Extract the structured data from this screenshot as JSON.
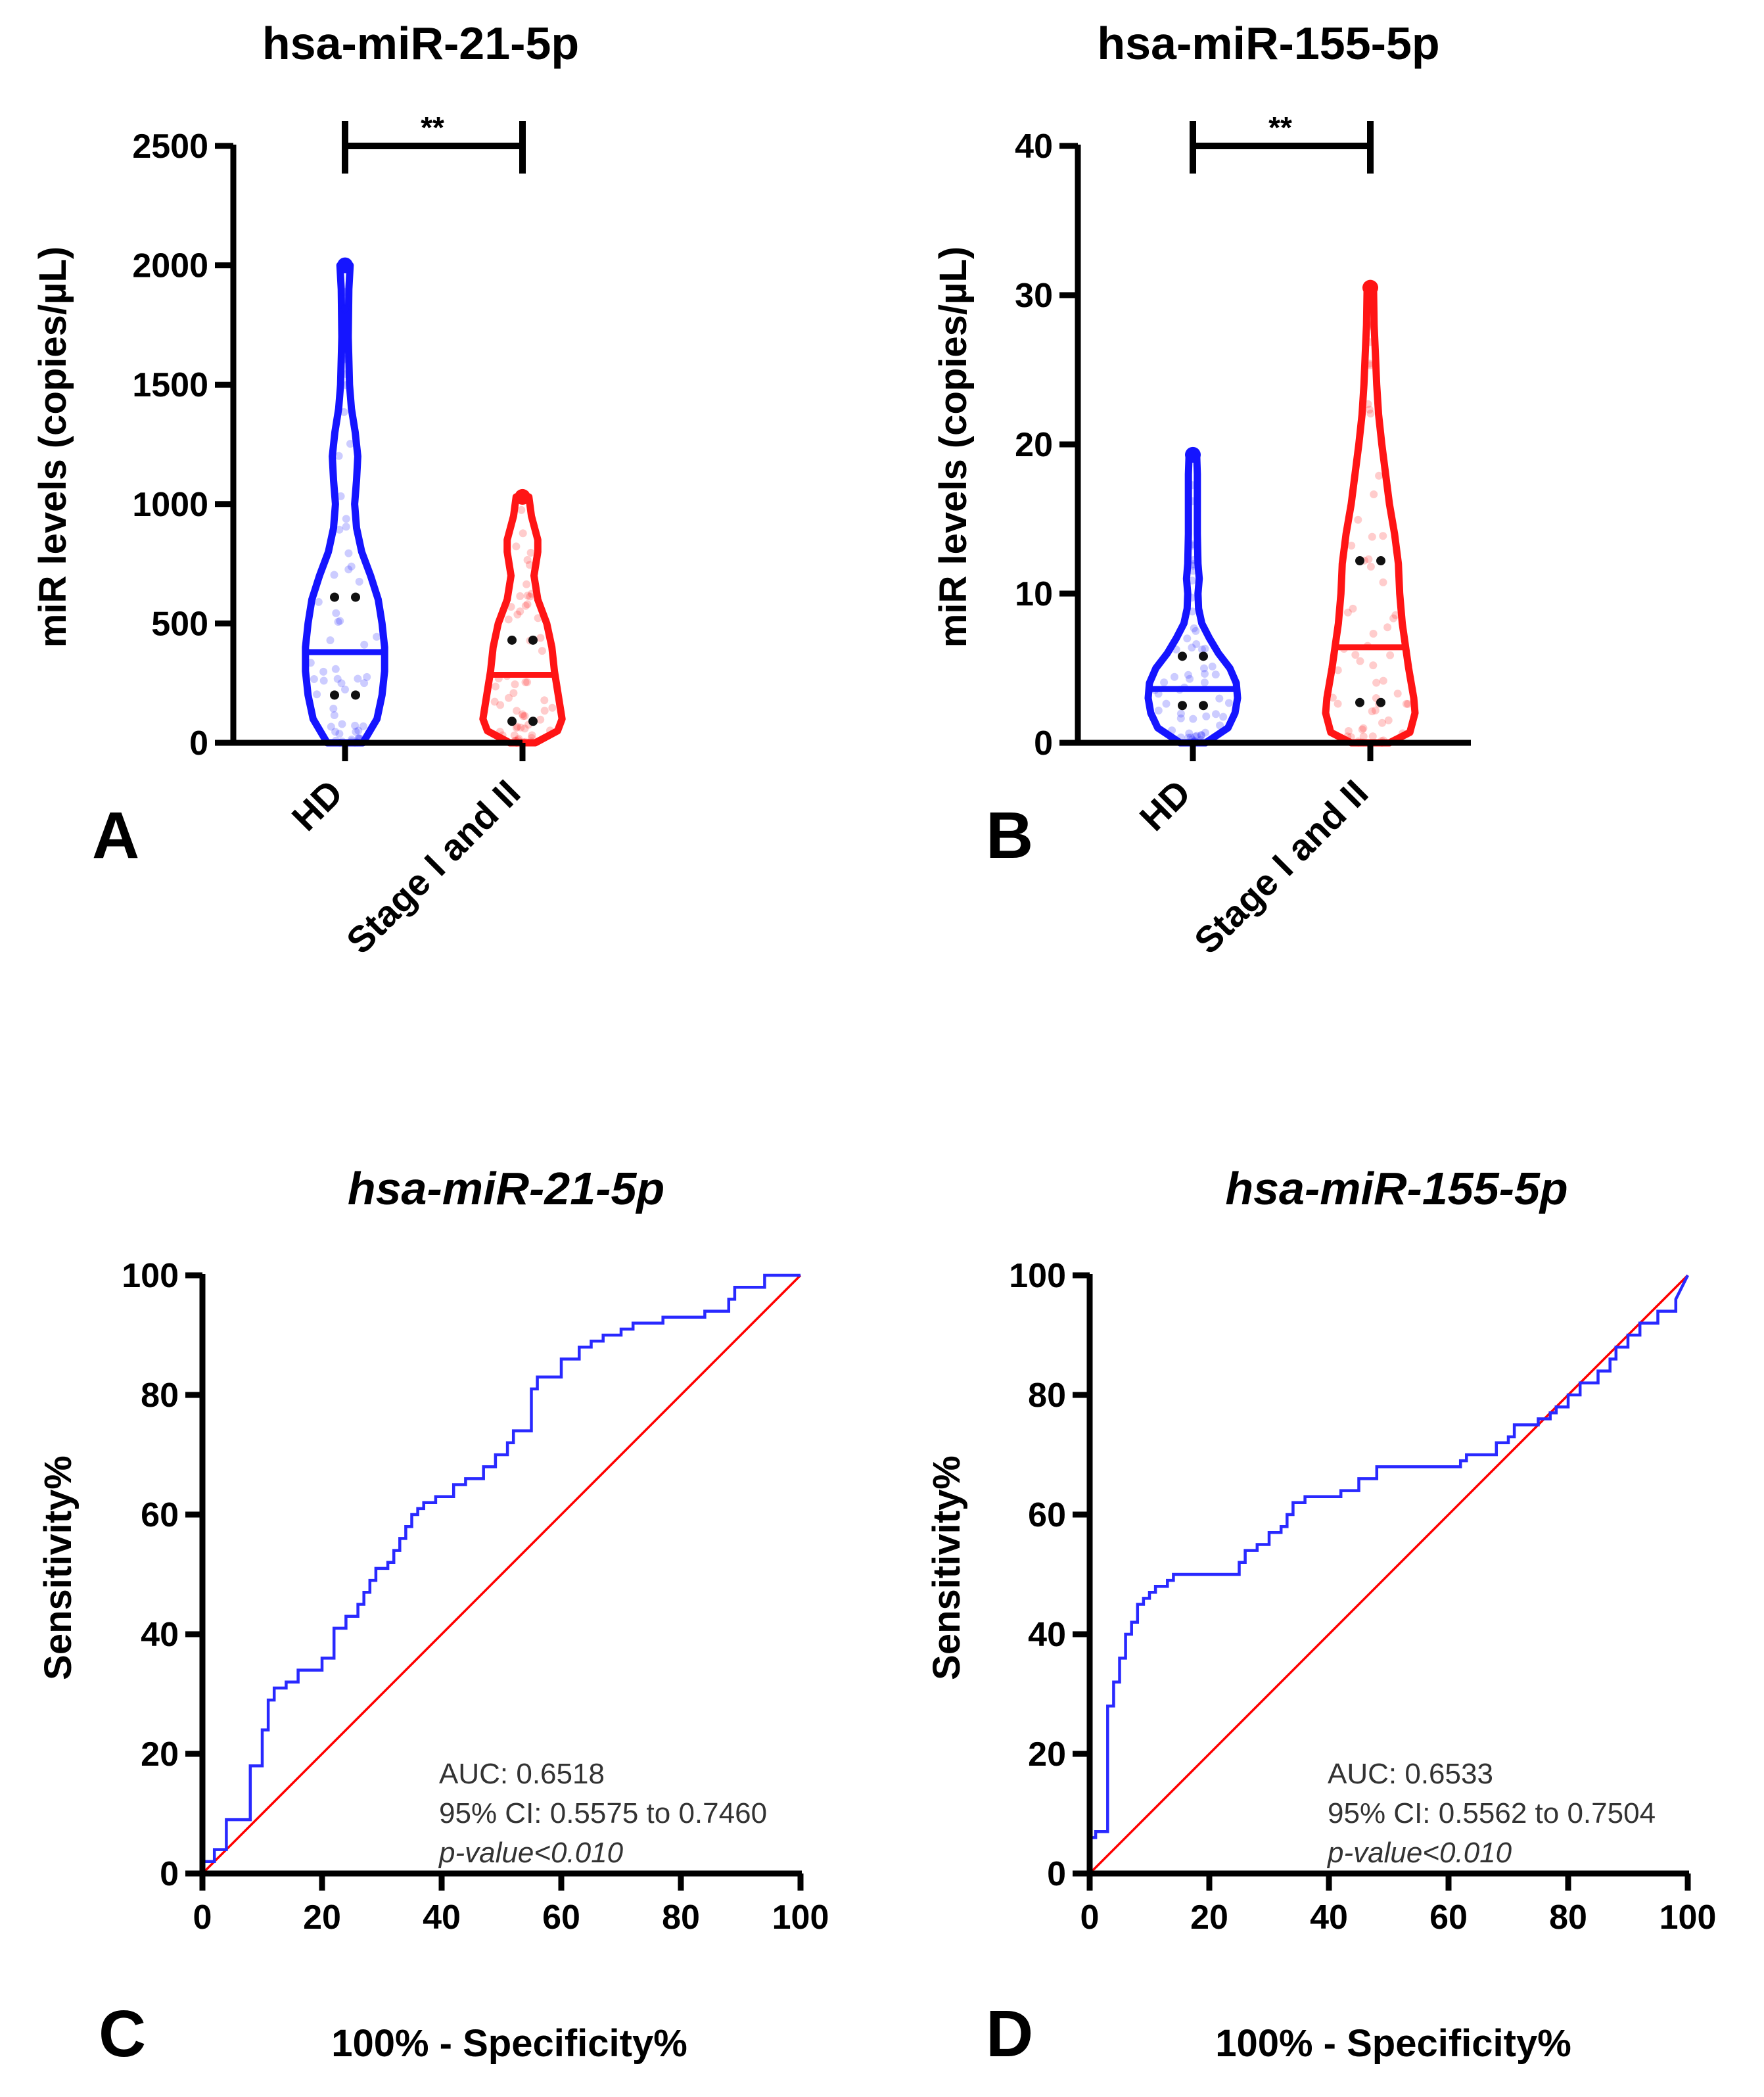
{
  "chart_data": [
    {
      "panel": "A",
      "type": "violin",
      "title": "hsa-miR-21-5p",
      "ylabel": "miR levels (copies/µL)",
      "ylim": [
        0,
        2500
      ],
      "yticks": [
        0,
        500,
        1000,
        1500,
        2000,
        2500
      ],
      "categories": [
        "HD",
        "Stage I and II"
      ],
      "colors": [
        "#1515ff",
        "#ff1515"
      ],
      "medians": [
        380,
        285
      ],
      "quartiles": [
        [
          200,
          610
        ],
        [
          90,
          430
        ]
      ],
      "range": [
        [
          0,
          2000
        ],
        [
          0,
          1030
        ]
      ],
      "significance": "**"
    },
    {
      "panel": "B",
      "type": "violin",
      "title": "hsa-miR-155-5p",
      "ylabel": "miR levels (copies/µL)",
      "ylim": [
        0,
        40
      ],
      "yticks": [
        0,
        10,
        20,
        30,
        40
      ],
      "categories": [
        "HD",
        "Stage I and II"
      ],
      "colors": [
        "#1515ff",
        "#ff1515"
      ],
      "medians": [
        3.6,
        6.4
      ],
      "quartiles": [
        [
          2.5,
          5.8
        ],
        [
          2.7,
          12.2
        ]
      ],
      "range": [
        [
          0,
          19.3
        ],
        [
          0,
          30.5
        ]
      ],
      "significance": "**"
    },
    {
      "panel": "C",
      "type": "line",
      "title": "hsa-miR-21-5p",
      "xlabel": "100% - Specificity%",
      "ylabel": "Sensitivity%",
      "xlim": [
        0,
        100
      ],
      "ylim": [
        0,
        100
      ],
      "ticks": [
        0,
        20,
        40,
        60,
        80,
        100
      ],
      "series": [
        {
          "name": "ROC",
          "color": "#2929ff",
          "x": [
            0,
            0,
            2,
            2,
            4,
            4,
            8,
            8,
            10,
            10,
            11,
            11,
            12,
            12,
            14,
            14,
            16,
            16,
            20,
            20,
            22,
            22,
            24,
            24,
            26,
            26,
            27,
            27,
            28,
            28,
            29,
            29,
            31,
            31,
            32,
            32,
            33,
            33,
            34,
            34,
            35,
            35,
            36,
            36,
            37,
            37,
            39,
            39,
            42,
            42,
            44,
            44,
            47,
            47,
            49,
            49,
            51,
            51,
            52,
            52,
            55,
            55,
            56,
            56,
            60,
            60,
            63,
            63,
            65,
            65,
            67,
            67,
            70,
            70,
            72,
            72,
            77,
            77,
            84,
            84,
            88,
            88,
            89,
            89,
            94,
            94,
            100
          ],
          "y": [
            0,
            2,
            2,
            4,
            4,
            9,
            9,
            18,
            18,
            24,
            24,
            29,
            29,
            31,
            31,
            32,
            32,
            34,
            34,
            36,
            36,
            41,
            41,
            43,
            43,
            45,
            45,
            47,
            47,
            49,
            49,
            51,
            51,
            52,
            52,
            54,
            54,
            56,
            56,
            58,
            58,
            60,
            60,
            61,
            61,
            62,
            62,
            63,
            63,
            65,
            65,
            66,
            66,
            68,
            68,
            70,
            70,
            72,
            72,
            74,
            74,
            81,
            81,
            83,
            83,
            86,
            86,
            88,
            88,
            89,
            89,
            90,
            90,
            91,
            91,
            92,
            92,
            93,
            93,
            94,
            94,
            96,
            96,
            98,
            98,
            100,
            100
          ]
        },
        {
          "name": "Reference",
          "color": "#ff0000",
          "x": [
            0,
            100
          ],
          "y": [
            0,
            100
          ]
        }
      ],
      "annotations": [
        "AUC: 0.6518",
        "95% CI: 0.5575 to 0.7460",
        "p-value<0.010"
      ]
    },
    {
      "panel": "D",
      "type": "line",
      "title": "hsa-miR-155-5p",
      "xlabel": "100% - Specificity%",
      "ylabel": "Sensitivity%",
      "xlim": [
        0,
        100
      ],
      "ylim": [
        0,
        100
      ],
      "ticks": [
        0,
        20,
        40,
        60,
        80,
        100
      ],
      "series": [
        {
          "name": "ROC",
          "color": "#2929ff",
          "x": [
            0,
            0,
            1,
            1,
            3,
            3,
            4,
            4,
            5,
            5,
            6,
            6,
            7,
            7,
            8,
            8,
            9,
            9,
            10,
            10,
            11,
            11,
            13,
            13,
            14,
            14,
            25,
            25,
            26,
            26,
            28,
            28,
            30,
            30,
            32,
            32,
            33,
            33,
            34,
            34,
            36,
            36,
            42,
            42,
            45,
            45,
            48,
            48,
            62,
            62,
            63,
            63,
            68,
            68,
            70,
            70,
            71,
            71,
            75,
            75,
            77,
            77,
            78,
            78,
            80,
            80,
            82,
            82,
            85,
            85,
            87,
            87,
            88,
            88,
            90,
            90,
            92,
            92,
            95,
            95,
            98,
            98,
            100
          ],
          "y": [
            0,
            6,
            6,
            7,
            7,
            28,
            28,
            32,
            32,
            36,
            36,
            40,
            40,
            42,
            42,
            45,
            45,
            46,
            46,
            47,
            47,
            48,
            48,
            49,
            49,
            50,
            50,
            52,
            52,
            54,
            54,
            55,
            55,
            57,
            57,
            58,
            58,
            60,
            60,
            62,
            62,
            63,
            63,
            64,
            64,
            66,
            66,
            68,
            68,
            69,
            69,
            70,
            70,
            72,
            72,
            73,
            73,
            75,
            75,
            76,
            76,
            77,
            77,
            78,
            78,
            80,
            80,
            82,
            82,
            84,
            84,
            86,
            86,
            88,
            88,
            90,
            90,
            92,
            92,
            94,
            94,
            96,
            100
          ]
        },
        {
          "name": "Reference",
          "color": "#ff0000",
          "x": [
            0,
            100
          ],
          "y": [
            0,
            100
          ]
        }
      ],
      "annotations": [
        "AUC: 0.6533",
        "95% CI: 0.5562 to 0.7504",
        "p-value<0.010"
      ]
    }
  ]
}
